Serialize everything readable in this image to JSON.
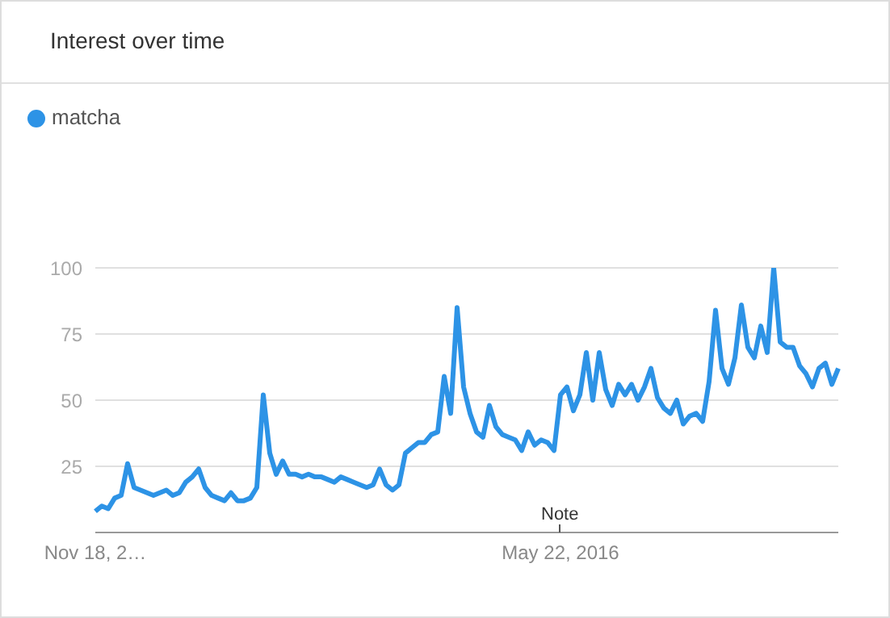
{
  "chart_data": {
    "type": "line",
    "title": "Interest over time",
    "categories": [
      "Nov 18, 2…",
      null,
      null,
      null,
      null,
      null,
      null,
      null,
      null,
      null,
      null,
      null,
      null,
      null,
      null,
      null,
      null,
      null,
      null,
      null,
      null,
      null,
      null,
      null,
      null,
      null,
      null,
      null,
      null,
      null,
      null,
      null,
      null,
      null,
      null,
      null,
      null,
      null,
      null,
      null,
      null,
      null,
      null,
      null,
      null,
      null,
      null,
      null,
      null,
      null,
      null,
      null,
      null,
      null,
      null,
      null,
      null,
      null,
      null,
      null,
      null,
      null,
      null,
      null,
      null,
      null,
      null,
      null,
      null,
      null,
      null,
      null,
      "May 22, 2016",
      null,
      null,
      null,
      null,
      null,
      null,
      null,
      null,
      null,
      null,
      null,
      null,
      null,
      null,
      null,
      null,
      null,
      null,
      null,
      null,
      null,
      null,
      null,
      null,
      null,
      null,
      null,
      null,
      null,
      null,
      null,
      null,
      null,
      null,
      null,
      null,
      null,
      null,
      null,
      null,
      null,
      null,
      null
    ],
    "series": [
      {
        "name": "matcha",
        "color": "#2d93e6",
        "values": [
          8,
          10,
          9,
          13,
          14,
          26,
          17,
          16,
          15,
          14,
          15,
          16,
          14,
          15,
          19,
          21,
          24,
          17,
          14,
          13,
          12,
          15,
          12,
          12,
          13,
          17,
          52,
          30,
          22,
          27,
          22,
          22,
          21,
          22,
          21,
          21,
          20,
          19,
          21,
          20,
          19,
          18,
          17,
          18,
          24,
          18,
          16,
          18,
          30,
          32,
          34,
          34,
          37,
          38,
          59,
          45,
          85,
          55,
          45,
          38,
          36,
          48,
          40,
          37,
          36,
          35,
          31,
          38,
          33,
          35,
          34,
          31,
          52,
          55,
          46,
          52,
          68,
          50,
          68,
          54,
          48,
          56,
          52,
          56,
          50,
          55,
          62,
          51,
          47,
          45,
          50,
          41,
          44,
          45,
          42,
          57,
          84,
          62,
          56,
          66,
          86,
          70,
          66,
          78,
          68,
          100,
          72,
          70,
          70,
          63,
          60,
          55,
          62,
          64,
          56,
          62
        ]
      }
    ],
    "ylim": [
      0,
      100
    ],
    "yticks": [
      25,
      50,
      75,
      100
    ],
    "grid": "y",
    "legend": "top left",
    "marker": "none",
    "line_style": "solid",
    "annotations": [
      "Note"
    ]
  }
}
